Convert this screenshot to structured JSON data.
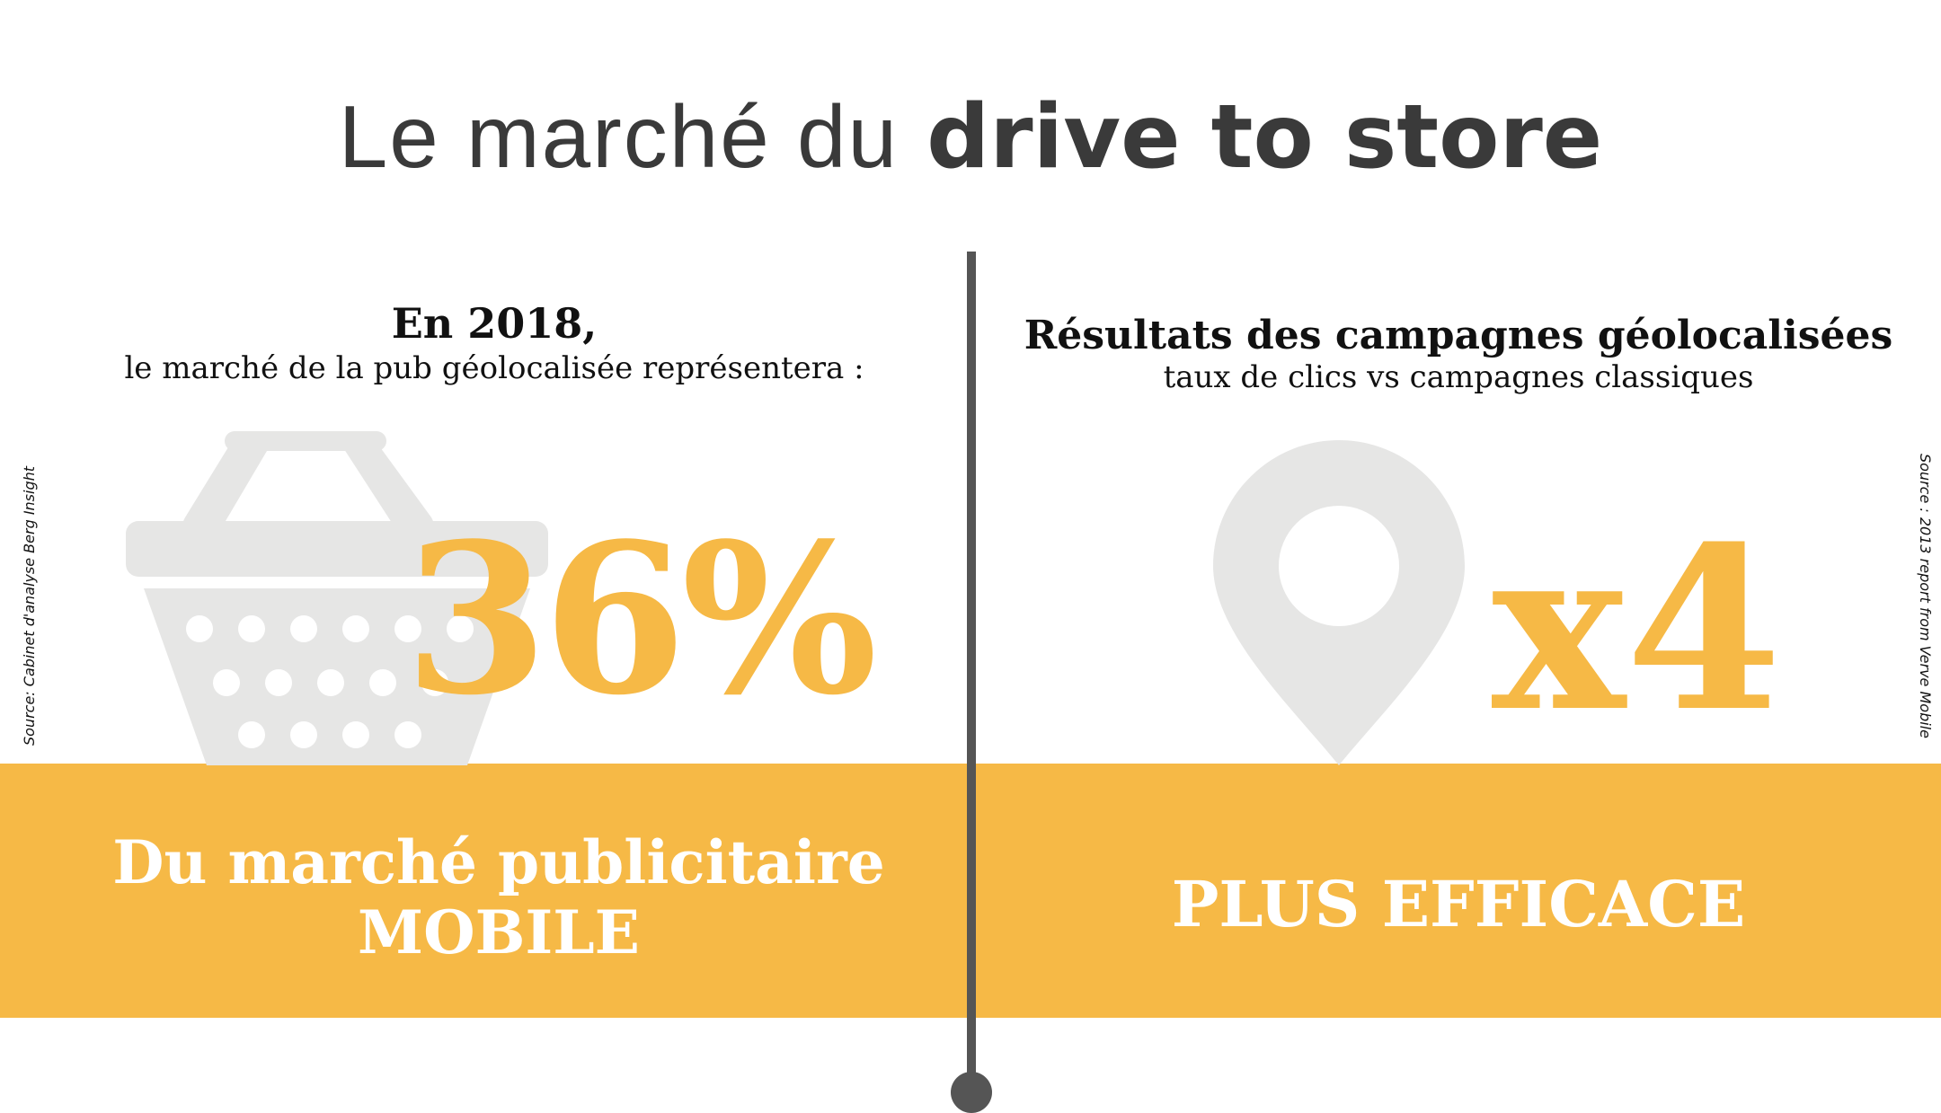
{
  "title": {
    "light": "Le marché du",
    "bold": "drive to store"
  },
  "left": {
    "heading": "En 2018,",
    "subheading": "le marché de la pub géolocalisée représentera  :",
    "stat": "36%",
    "band_line1": "Du marché publicitaire",
    "band_line2": "MOBILE",
    "icon": "shopping-basket-icon",
    "source": "Source: Cabinet d'analyse Berg Insight"
  },
  "right": {
    "heading": "Résultats des campagnes géolocalisées",
    "subheading": "taux de clics vs campagnes classiques",
    "stat": "x4",
    "band_text": "PLUS EFFICACE",
    "icon": "map-pin-icon",
    "source": "Source : 2013 report from Verve Mobile"
  },
  "colors": {
    "accent": "#f6b946",
    "divider": "#555555",
    "icon_gray": "#e6e6e5",
    "title_text": "#3a3a3a"
  }
}
